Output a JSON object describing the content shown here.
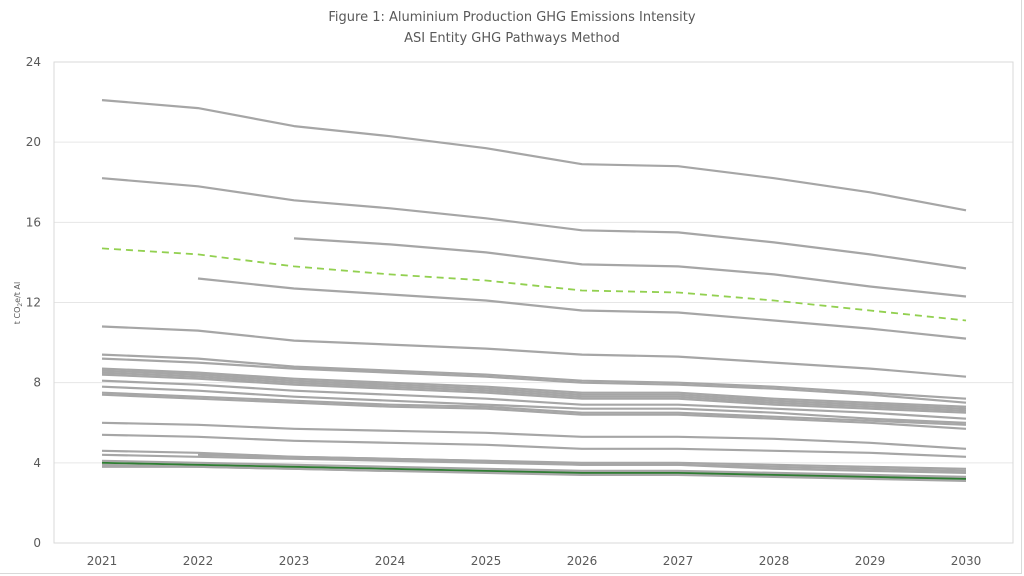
{
  "chart_data": {
    "type": "line",
    "title": "Figure 1: Aluminium Production GHG Emissions Intensity",
    "subtitle": "ASI Entity GHG Pathways Method",
    "xlabel": "",
    "ylabel": "t CO2e/t Al",
    "ylabel_main": "t CO",
    "ylabel_sub": "2",
    "ylabel_rest": "e/t Al",
    "ylim": [
      0,
      24
    ],
    "yticks": [
      0,
      4,
      8,
      12,
      16,
      20,
      24
    ],
    "x": [
      "2021",
      "2022",
      "2023",
      "2024",
      "2025",
      "2026",
      "2027",
      "2028",
      "2029",
      "2030"
    ],
    "grid": true,
    "legend": "none",
    "colors": {
      "entity": "#a6a6a6",
      "pathway": "#92d050",
      "highlight": "#2e7d32"
    },
    "series": [
      {
        "name": "entity-1",
        "style": "entity",
        "values": [
          22.1,
          21.7,
          20.8,
          20.3,
          19.7,
          18.9,
          18.8,
          18.2,
          17.5,
          16.6
        ]
      },
      {
        "name": "entity-2",
        "style": "entity",
        "values": [
          18.2,
          17.8,
          17.1,
          16.7,
          16.2,
          15.6,
          15.5,
          15.0,
          14.4,
          13.7
        ]
      },
      {
        "name": "entity-3",
        "style": "entity",
        "values": [
          null,
          null,
          15.2,
          14.9,
          14.5,
          13.9,
          13.8,
          13.4,
          12.8,
          12.3
        ]
      },
      {
        "name": "pathway",
        "style": "pathway",
        "values": [
          14.7,
          14.4,
          13.8,
          13.4,
          13.1,
          12.6,
          12.5,
          12.1,
          11.6,
          11.1
        ]
      },
      {
        "name": "entity-4",
        "style": "entity",
        "values": [
          null,
          13.2,
          12.7,
          12.4,
          12.1,
          11.6,
          11.5,
          11.1,
          10.7,
          10.2
        ]
      },
      {
        "name": "entity-5",
        "style": "entity",
        "values": [
          10.8,
          10.6,
          10.1,
          9.9,
          9.7,
          9.4,
          9.3,
          9.0,
          8.7,
          8.3
        ]
      },
      {
        "name": "entity-6",
        "style": "entity",
        "values": [
          9.4,
          9.2,
          8.8,
          8.6,
          8.4,
          8.1,
          8.0,
          7.8,
          7.5,
          7.2
        ]
      },
      {
        "name": "entity-7",
        "style": "entity",
        "values": [
          9.2,
          9.0,
          8.7,
          8.5,
          8.3,
          8.0,
          7.9,
          7.7,
          7.4,
          7.0
        ]
      },
      {
        "name": "entity-8",
        "style": "entity",
        "values": [
          8.7,
          8.5,
          8.2,
          8.0,
          7.8,
          7.5,
          7.5,
          7.2,
          7.0,
          6.8
        ]
      },
      {
        "name": "entity-9",
        "style": "entity",
        "values": [
          8.6,
          8.4,
          8.1,
          7.9,
          7.7,
          7.4,
          7.4,
          7.1,
          6.9,
          6.7
        ]
      },
      {
        "name": "entity-10",
        "style": "entity",
        "values": [
          8.5,
          8.3,
          8.0,
          7.8,
          7.6,
          7.3,
          7.3,
          7.0,
          6.8,
          6.6
        ]
      },
      {
        "name": "entity-11",
        "style": "entity",
        "values": [
          8.4,
          8.2,
          7.9,
          7.7,
          7.5,
          7.2,
          7.2,
          6.9,
          6.7,
          6.5
        ]
      },
      {
        "name": "entity-12",
        "style": "entity",
        "values": [
          8.1,
          7.9,
          7.6,
          7.4,
          7.2,
          6.9,
          6.9,
          6.7,
          6.5,
          6.2
        ]
      },
      {
        "name": "entity-13",
        "style": "entity",
        "values": [
          7.8,
          7.6,
          7.3,
          7.1,
          6.9,
          6.7,
          6.7,
          6.5,
          6.2,
          6.0
        ]
      },
      {
        "name": "entity-14",
        "style": "entity",
        "values": [
          7.5,
          7.3,
          7.1,
          6.9,
          6.8,
          6.5,
          6.5,
          6.3,
          6.1,
          5.9
        ]
      },
      {
        "name": "entity-15",
        "style": "entity",
        "values": [
          7.4,
          7.2,
          7.0,
          6.8,
          6.7,
          6.4,
          6.4,
          6.2,
          6.0,
          5.7
        ]
      },
      {
        "name": "entity-16",
        "style": "entity",
        "values": [
          6.0,
          5.9,
          5.7,
          5.6,
          5.5,
          5.3,
          5.3,
          5.2,
          5.0,
          4.7
        ]
      },
      {
        "name": "entity-17",
        "style": "entity",
        "values": [
          5.4,
          5.3,
          5.1,
          5.0,
          4.9,
          4.7,
          4.7,
          4.6,
          4.5,
          4.3
        ]
      },
      {
        "name": "entity-18",
        "style": "entity",
        "values": [
          4.6,
          4.5,
          4.3,
          4.2,
          4.1,
          4.0,
          4.0,
          3.9,
          3.8,
          3.7
        ]
      },
      {
        "name": "entity-19",
        "style": "entity",
        "values": [
          null,
          4.4,
          4.3,
          4.2,
          4.1,
          3.9,
          3.9,
          3.8,
          3.7,
          3.6
        ]
      },
      {
        "name": "entity-20",
        "style": "entity",
        "values": [
          4.4,
          4.3,
          4.2,
          4.1,
          4.0,
          3.9,
          3.9,
          3.7,
          3.6,
          3.5
        ]
      },
      {
        "name": "entity-21",
        "style": "entity",
        "values": [
          4.1,
          4.0,
          3.9,
          3.8,
          3.7,
          3.6,
          3.6,
          3.5,
          3.4,
          3.3
        ]
      },
      {
        "name": "entity-22",
        "style": "entity",
        "values": [
          3.9,
          3.8,
          3.7,
          3.6,
          3.5,
          3.4,
          3.4,
          3.3,
          3.2,
          3.1
        ]
      },
      {
        "name": "entity-23",
        "style": "entity",
        "values": [
          3.8,
          3.8,
          3.7,
          3.6,
          3.6,
          3.5,
          3.5,
          3.4,
          3.3,
          3.2
        ]
      },
      {
        "name": "best-performer",
        "style": "highlight",
        "values": [
          4.0,
          3.9,
          3.8,
          3.7,
          3.6,
          3.5,
          3.5,
          3.4,
          3.3,
          3.2
        ]
      }
    ]
  }
}
